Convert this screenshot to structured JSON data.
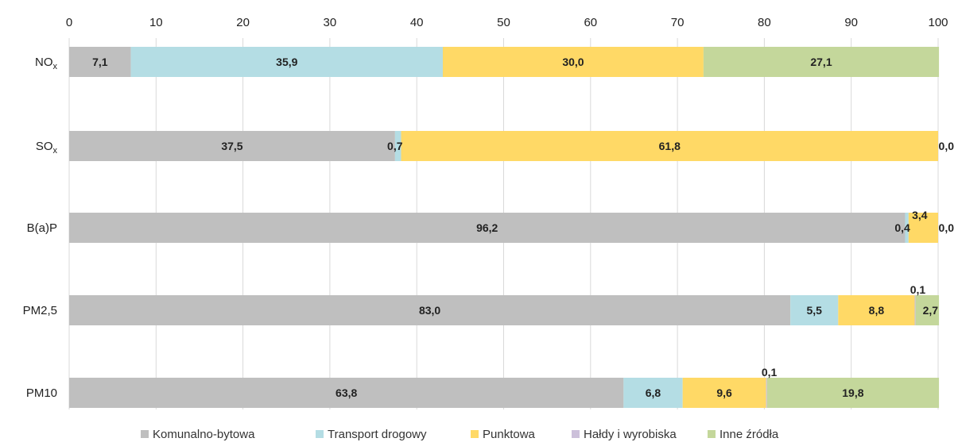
{
  "chart_data": {
    "type": "bar",
    "orientation": "horizontal",
    "stacked": true,
    "categories": [
      {
        "main": "NO",
        "sub": "x"
      },
      {
        "main": "SO",
        "sub": "x"
      },
      {
        "main": "B(a)P",
        "sub": ""
      },
      {
        "main": "PM2,5",
        "sub": ""
      },
      {
        "main": "PM10",
        "sub": ""
      }
    ],
    "series": [
      {
        "name": "Komunalno-bytowa",
        "color": "#bfbfbf",
        "values": [
          7.1,
          37.5,
          96.2,
          83.0,
          63.8
        ],
        "labels": [
          "7,1",
          "37,5",
          "96,2",
          "83,0",
          "63,8"
        ]
      },
      {
        "name": "Transport drogowy",
        "color": "#b4dde4",
        "values": [
          35.9,
          0.7,
          0.4,
          5.5,
          6.8
        ],
        "labels": [
          "35,9",
          "0,7",
          "0,4",
          "5,5",
          "6,8"
        ]
      },
      {
        "name": "Punktowa",
        "color": "#ffd966",
        "values": [
          30.0,
          61.8,
          3.4,
          8.8,
          9.6
        ],
        "labels": [
          "30,0",
          "61,8",
          "3,4",
          "8,8",
          "9,6"
        ]
      },
      {
        "name": "Hałdy i wyrobiska",
        "color": "#ccc0da",
        "values": [
          0,
          0,
          0,
          0.1,
          0.1
        ],
        "labels": [
          null,
          null,
          null,
          "0,1",
          "0,1"
        ]
      },
      {
        "name": "Inne źródła",
        "color": "#c4d79b",
        "values": [
          27.1,
          0.0,
          0.0,
          2.7,
          19.8
        ],
        "labels": [
          "27,1",
          "0,0",
          "0,0",
          "2,7",
          "19,8"
        ]
      }
    ],
    "xlim": [
      0,
      100
    ],
    "xticks": [
      0,
      10,
      20,
      30,
      40,
      50,
      60,
      70,
      80,
      90,
      100
    ],
    "x_axis_position": "top",
    "grid": true,
    "legend_position": "bottom",
    "title": "",
    "xlabel": "",
    "ylabel": ""
  }
}
